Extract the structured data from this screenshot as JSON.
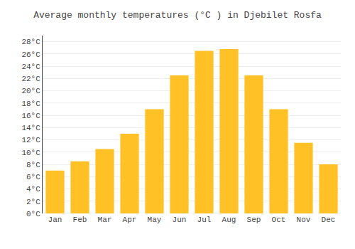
{
  "chart_data": {
    "type": "bar",
    "title": "Average monthly temperatures (°C ) in Djebilet Rosfa",
    "categories": [
      "Jan",
      "Feb",
      "Mar",
      "Apr",
      "May",
      "Jun",
      "Jul",
      "Aug",
      "Sep",
      "Oct",
      "Nov",
      "Dec"
    ],
    "values": [
      7,
      8.5,
      10.5,
      13,
      17,
      22.5,
      26.5,
      26.8,
      22.5,
      17,
      11.5,
      8
    ],
    "color": "#FFC125",
    "ylim": [
      0,
      29
    ],
    "yticks": [
      {
        "value": 0,
        "label": "0°C"
      },
      {
        "value": 2,
        "label": "2°C"
      },
      {
        "value": 4,
        "label": "4°C"
      },
      {
        "value": 6,
        "label": "6°C"
      },
      {
        "value": 8,
        "label": "8°C"
      },
      {
        "value": 10,
        "label": "10°C"
      },
      {
        "value": 12,
        "label": "12°C"
      },
      {
        "value": 14,
        "label": "14°C"
      },
      {
        "value": 16,
        "label": "16°C"
      },
      {
        "value": 18,
        "label": "18°C"
      },
      {
        "value": 20,
        "label": "20°C"
      },
      {
        "value": 22,
        "label": "22°C"
      },
      {
        "value": 24,
        "label": "24°C"
      },
      {
        "value": 26,
        "label": "26°C"
      },
      {
        "value": 28,
        "label": "28°C"
      }
    ],
    "grid": true
  }
}
